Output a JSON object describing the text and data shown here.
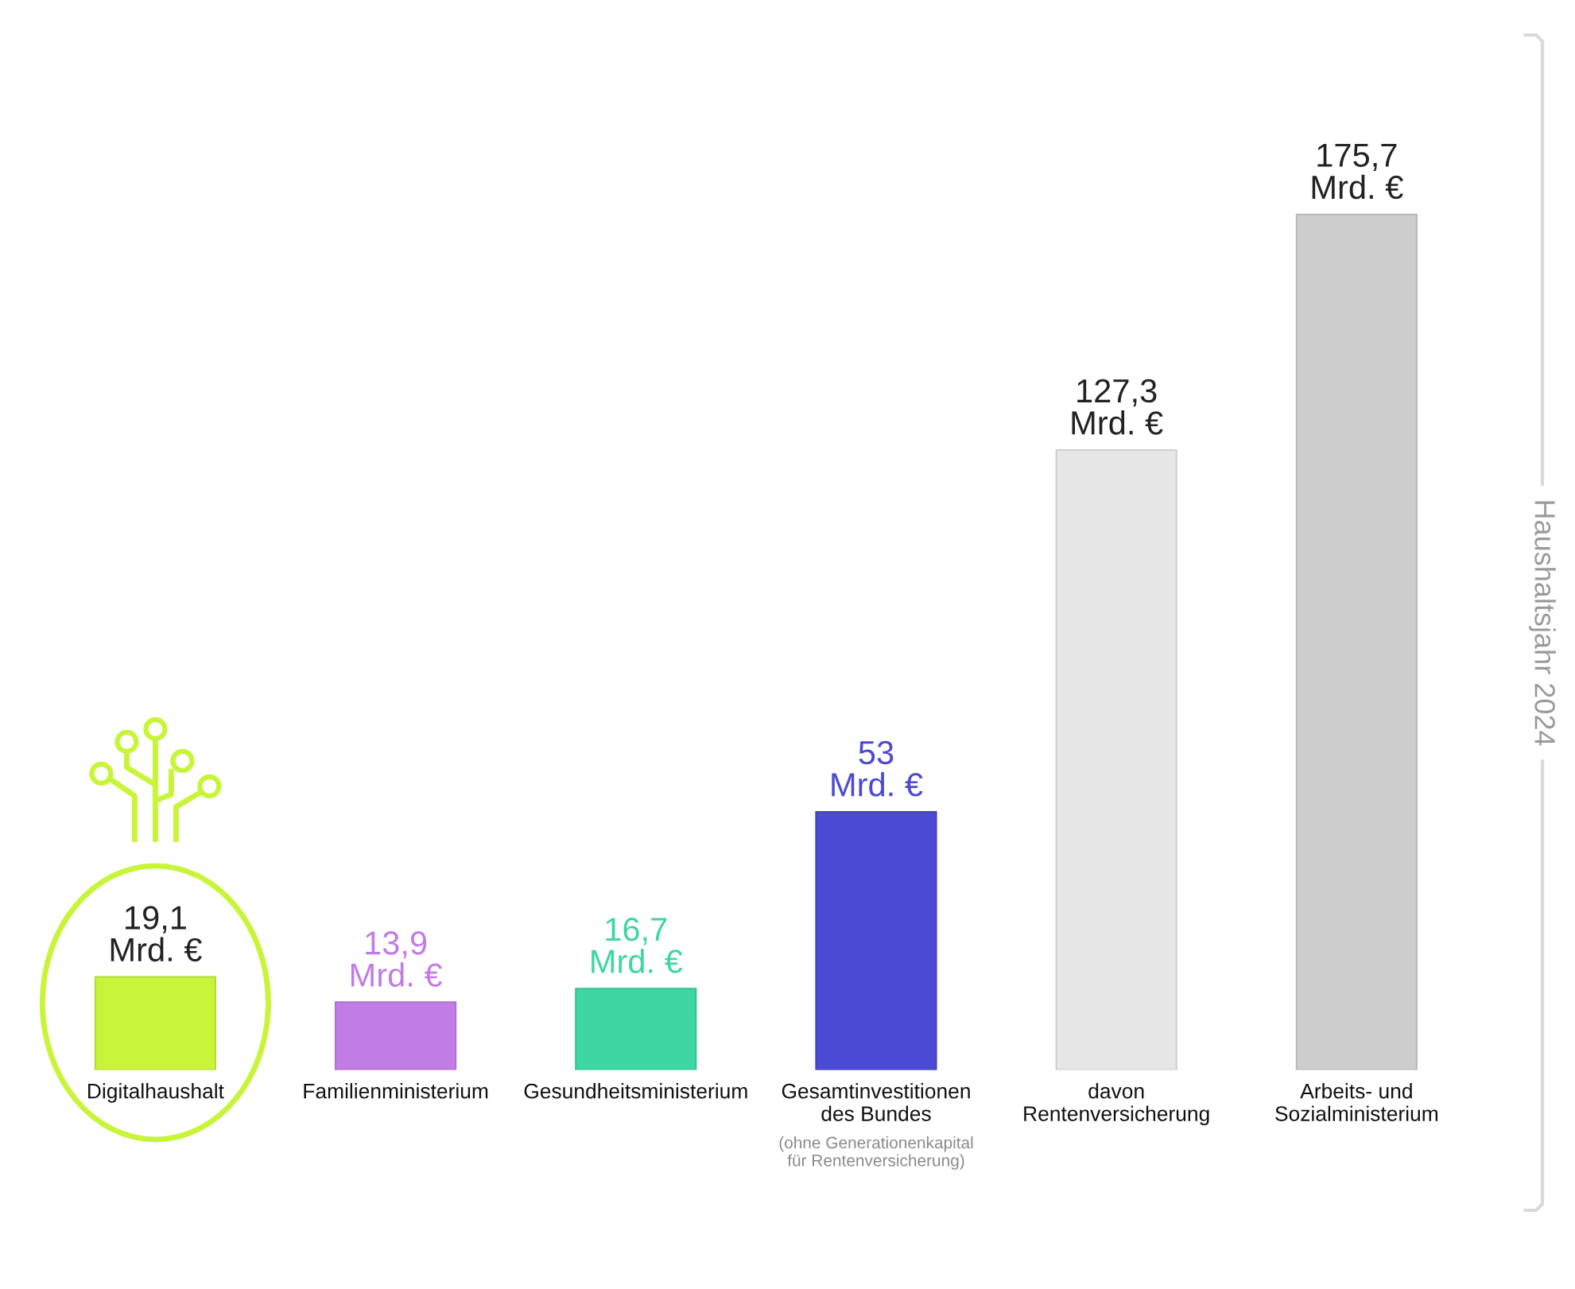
{
  "chart_data": {
    "type": "bar",
    "categories": [
      "Digitalhaushalt",
      "Familienministerium",
      "Gesundheitsministerium",
      "Gesamtinvestitionen des Bundes",
      "davon Rentenversicherung",
      "Arbeits- und Sozialministerium"
    ],
    "values": [
      19.1,
      13.9,
      16.7,
      53,
      127.3,
      175.7
    ],
    "colors": [
      "#c8f53a",
      "#c27ce6",
      "#3ed6a3",
      "#4a4ad4",
      "#e6e6e6",
      "#cdcdcd"
    ],
    "value_labels": [
      "19,1 Mrd. €",
      "13,9 Mrd. €",
      "16,7 Mrd. €",
      "53 Mrd. €",
      "127,3 Mrd. €",
      "175,7 Mrd. €"
    ],
    "annotations": [
      "Haushaltsjahr 2024",
      "(ohne Generationenkapital für Rentenversicherung)"
    ]
  }
}
